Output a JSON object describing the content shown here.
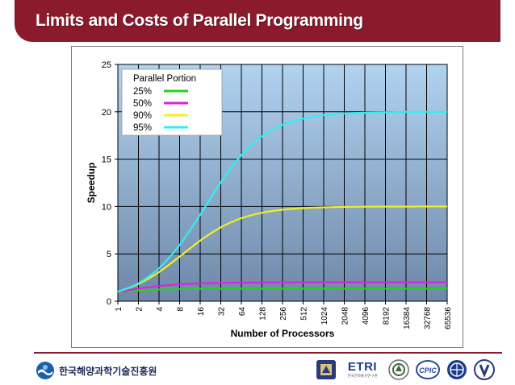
{
  "slide": {
    "title": "Limits and Costs of Parallel Programming"
  },
  "footer": {
    "org_name": "한국해양과학기술진흥원",
    "partner_logos": [
      {
        "name": "university-seal-icon"
      },
      {
        "name": "etri-logo",
        "text": "ETRI",
        "subtext": "한국전자통신연구원"
      },
      {
        "name": "university-emblem-icon"
      },
      {
        "name": "cpic-logo",
        "text": "CPIC"
      },
      {
        "name": "globe-seal-icon"
      },
      {
        "name": "shield-emblem-icon"
      }
    ]
  },
  "colors": {
    "header": "#8b1a2c",
    "plot_top": "#b0d3f0",
    "plot_bottom": "#6f87a8",
    "series": [
      "#22d422",
      "#dd22dd",
      "#f0f01e",
      "#2ef0f0"
    ]
  },
  "chart_data": {
    "type": "line",
    "xlabel": "Number of Processors",
    "ylabel": "Speedup",
    "x": [
      "1",
      "2",
      "4",
      "8",
      "16",
      "32",
      "64",
      "128",
      "256",
      "512",
      "1024",
      "2048",
      "4096",
      "8192",
      "16384",
      "32768",
      "65536"
    ],
    "ylim": [
      0,
      25
    ],
    "yticks": [
      "0",
      "5",
      "10",
      "15",
      "20",
      "25"
    ],
    "grid": true,
    "legend": {
      "title": "Parallel Portion",
      "placement": "top-left"
    },
    "series": [
      {
        "name": "25%",
        "values": [
          1.0,
          1.14,
          1.23,
          1.28,
          1.31,
          1.32,
          1.33,
          1.33,
          1.33,
          1.33,
          1.33,
          1.33,
          1.33,
          1.33,
          1.33,
          1.33,
          1.33
        ]
      },
      {
        "name": "50%",
        "values": [
          1.0,
          1.33,
          1.6,
          1.78,
          1.88,
          1.94,
          1.97,
          1.98,
          1.99,
          2.0,
          2.0,
          2.0,
          2.0,
          2.0,
          2.0,
          2.0,
          2.0
        ]
      },
      {
        "name": "90%",
        "values": [
          1.0,
          1.82,
          3.08,
          4.71,
          6.4,
          7.8,
          8.77,
          9.34,
          9.66,
          9.83,
          9.91,
          9.96,
          9.98,
          9.99,
          9.99,
          10.0,
          10.0
        ]
      },
      {
        "name": "95%",
        "values": [
          1.0,
          1.9,
          3.48,
          5.93,
          9.14,
          12.55,
          15.42,
          17.41,
          18.62,
          19.28,
          19.64,
          19.82,
          19.91,
          19.95,
          19.98,
          19.99,
          19.99
        ]
      }
    ]
  }
}
